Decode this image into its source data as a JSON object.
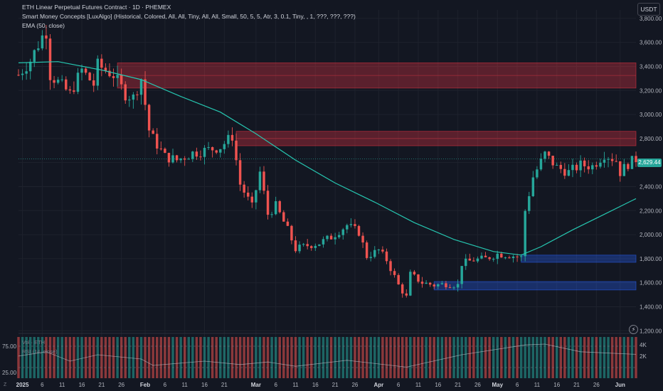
{
  "header": {
    "title": "ETH Linear Perpetual Futures Contract · 1D · PHEMEX",
    "indicator_smc": "Smart Money Concepts [LuxAlgo] (Historical, Colored, All, All, Tiny, All, All, Small, 50, 5, 5, Atr, 3, 0.1, Tiny, , 1, ???, ???, ???)",
    "indicator_ema": "EMA (50, close)",
    "currency": "USDT",
    "last_price": "2,629.44"
  },
  "panes": {
    "volume_label": "Vol · ETH",
    "rsi_label": "RSI (14, close)",
    "rsi_ticks": [
      "75.00",
      "25.00"
    ],
    "volume_ticks": [
      "4K",
      "2K"
    ],
    "corner_label": "Z"
  },
  "colors": {
    "bull": "#26a69a",
    "bear": "#ef5350",
    "ema": "#26c6b0",
    "supply_zone": "#f23645",
    "demand_zone": "#2962ff",
    "background": "#131722",
    "grid": "#1e222d"
  },
  "chart_data": {
    "type": "candlestick",
    "title": "ETH Linear Perpetual Futures Contract · 1D · PHEMEX",
    "y_axis": {
      "ticks": [
        1200,
        1400,
        1600,
        1800,
        2000,
        2200,
        2400,
        2600,
        2800,
        3000,
        3200,
        3400,
        3600,
        3800
      ],
      "tick_labels": [
        "1,200.00",
        "1,400.00",
        "1,600.00",
        "1,800.00",
        "2,000.00",
        "2,200.00",
        "2,400.00",
        "2,600.00",
        "2,800.00",
        "3,000.00",
        "3,200.00",
        "3,400.00",
        "3,600.00",
        "3,800.00"
      ],
      "range": [
        1190,
        3870
      ],
      "grid": true,
      "side": "right"
    },
    "x_axis": {
      "ticks": [
        {
          "date": "2025-01-01",
          "label": "2025"
        },
        {
          "date": "2025-01-06",
          "label": "6"
        },
        {
          "date": "2025-01-11",
          "label": "11"
        },
        {
          "date": "2025-01-16",
          "label": "16"
        },
        {
          "date": "2025-01-21",
          "label": "21"
        },
        {
          "date": "2025-01-26",
          "label": "26"
        },
        {
          "date": "2025-02-01",
          "label": "Feb"
        },
        {
          "date": "2025-02-06",
          "label": "6"
        },
        {
          "date": "2025-02-11",
          "label": "11"
        },
        {
          "date": "2025-02-16",
          "label": "16"
        },
        {
          "date": "2025-02-21",
          "label": "21"
        },
        {
          "date": "2025-03-01",
          "label": "Mar"
        },
        {
          "date": "2025-03-06",
          "label": "6"
        },
        {
          "date": "2025-03-11",
          "label": "11"
        },
        {
          "date": "2025-03-16",
          "label": "16"
        },
        {
          "date": "2025-03-21",
          "label": "21"
        },
        {
          "date": "2025-03-26",
          "label": "26"
        },
        {
          "date": "2025-04-01",
          "label": "Apr"
        },
        {
          "date": "2025-04-06",
          "label": "6"
        },
        {
          "date": "2025-04-11",
          "label": "11"
        },
        {
          "date": "2025-04-16",
          "label": "16"
        },
        {
          "date": "2025-04-21",
          "label": "21"
        },
        {
          "date": "2025-04-26",
          "label": "26"
        },
        {
          "date": "2025-05-01",
          "label": "May"
        },
        {
          "date": "2025-05-06",
          "label": "6"
        },
        {
          "date": "2025-05-11",
          "label": "11"
        },
        {
          "date": "2025-05-16",
          "label": "16"
        },
        {
          "date": "2025-05-21",
          "label": "21"
        },
        {
          "date": "2025-05-26",
          "label": "26"
        },
        {
          "date": "2025-06-01",
          "label": "Jun"
        }
      ],
      "range": [
        "2024-12-31",
        "2025-06-05"
      ]
    },
    "current_price": 2629.44,
    "price_path": [
      [
        "2024-12-31",
        3330
      ],
      [
        "2025-01-03",
        3450
      ],
      [
        "2025-01-06",
        3650
      ],
      [
        "2025-01-07",
        3690
      ],
      [
        "2025-01-08",
        3330
      ],
      [
        "2025-01-10",
        3270
      ],
      [
        "2025-01-13",
        3170
      ],
      [
        "2025-01-16",
        3370
      ],
      [
        "2025-01-19",
        3250
      ],
      [
        "2025-01-20",
        3410
      ],
      [
        "2025-01-24",
        3330
      ],
      [
        "2025-01-27",
        3170
      ],
      [
        "2025-01-29",
        3140
      ],
      [
        "2025-01-31",
        3300
      ],
      [
        "2025-02-02",
        2870
      ],
      [
        "2025-02-03",
        2800
      ],
      [
        "2025-02-06",
        2650
      ],
      [
        "2025-02-09",
        2620
      ],
      [
        "2025-02-13",
        2680
      ],
      [
        "2025-02-16",
        2700
      ],
      [
        "2025-02-20",
        2730
      ],
      [
        "2025-02-23",
        2820
      ],
      [
        "2025-02-25",
        2420
      ],
      [
        "2025-02-28",
        2230
      ],
      [
        "2025-03-02",
        2520
      ],
      [
        "2025-03-04",
        2170
      ],
      [
        "2025-03-06",
        2240
      ],
      [
        "2025-03-09",
        2040
      ],
      [
        "2025-03-11",
        1880
      ],
      [
        "2025-03-14",
        1910
      ],
      [
        "2025-03-17",
        1930
      ],
      [
        "2025-03-20",
        1980
      ],
      [
        "2025-03-24",
        2080
      ],
      [
        "2025-03-27",
        2020
      ],
      [
        "2025-03-29",
        1820
      ],
      [
        "2025-04-01",
        1870
      ],
      [
        "2025-04-03",
        1790
      ],
      [
        "2025-04-06",
        1580
      ],
      [
        "2025-04-08",
        1480
      ],
      [
        "2025-04-09",
        1670
      ],
      [
        "2025-04-12",
        1600
      ],
      [
        "2025-04-15",
        1580
      ],
      [
        "2025-04-18",
        1590
      ],
      [
        "2025-04-21",
        1580
      ],
      [
        "2025-04-22",
        1760
      ],
      [
        "2025-04-25",
        1790
      ],
      [
        "2025-04-28",
        1800
      ],
      [
        "2025-05-01",
        1840
      ],
      [
        "2025-05-04",
        1830
      ],
      [
        "2025-05-07",
        1810
      ],
      [
        "2025-05-08",
        2200
      ],
      [
        "2025-05-10",
        2480
      ],
      [
        "2025-05-13",
        2670
      ],
      [
        "2025-05-16",
        2560
      ],
      [
        "2025-05-19",
        2520
      ],
      [
        "2025-05-22",
        2580
      ],
      [
        "2025-05-25",
        2570
      ],
      [
        "2025-05-28",
        2670
      ],
      [
        "2025-05-31",
        2620
      ],
      [
        "2025-06-01",
        2520
      ],
      [
        "2025-06-03",
        2590
      ],
      [
        "2025-06-05",
        2629
      ]
    ],
    "ema_path": [
      [
        "2024-12-31",
        3430
      ],
      [
        "2025-01-10",
        3440
      ],
      [
        "2025-01-21",
        3370
      ],
      [
        "2025-01-31",
        3290
      ],
      [
        "2025-02-10",
        3150
      ],
      [
        "2025-02-20",
        3020
      ],
      [
        "2025-03-01",
        2840
      ],
      [
        "2025-03-11",
        2620
      ],
      [
        "2025-03-21",
        2430
      ],
      [
        "2025-03-31",
        2270
      ],
      [
        "2025-04-10",
        2100
      ],
      [
        "2025-04-20",
        1960
      ],
      [
        "2025-04-30",
        1860
      ],
      [
        "2025-05-07",
        1830
      ],
      [
        "2025-05-12",
        1900
      ],
      [
        "2025-05-20",
        2040
      ],
      [
        "2025-05-28",
        2170
      ],
      [
        "2025-06-05",
        2300
      ]
    ],
    "zones": [
      {
        "type": "supply",
        "start": "2025-01-25",
        "end": "2025-06-05",
        "low": 3220,
        "high": 3430
      },
      {
        "type": "supply",
        "start": "2025-02-24",
        "end": "2025-06-05",
        "low": 2740,
        "high": 2860
      },
      {
        "type": "demand",
        "start": "2025-05-07",
        "end": "2025-06-05",
        "low": 1770,
        "high": 1830
      },
      {
        "type": "demand",
        "start": "2025-04-15",
        "end": "2025-06-05",
        "low": 1540,
        "high": 1610
      }
    ],
    "rsi": {
      "levels": [
        75,
        25
      ],
      "range": [
        0,
        100
      ],
      "path": [
        [
          "2024-12-31",
          52
        ],
        [
          "2025-01-07",
          62
        ],
        [
          "2025-01-13",
          40
        ],
        [
          "2025-01-20",
          55
        ],
        [
          "2025-01-31",
          45
        ],
        [
          "2025-02-03",
          30
        ],
        [
          "2025-02-16",
          40
        ],
        [
          "2025-02-25",
          32
        ],
        [
          "2025-03-04",
          38
        ],
        [
          "2025-03-11",
          28
        ],
        [
          "2025-03-24",
          42
        ],
        [
          "2025-04-08",
          26
        ],
        [
          "2025-04-22",
          55
        ],
        [
          "2025-05-08",
          78
        ],
        [
          "2025-05-13",
          80
        ],
        [
          "2025-05-22",
          62
        ],
        [
          "2025-06-05",
          56
        ]
      ]
    }
  }
}
